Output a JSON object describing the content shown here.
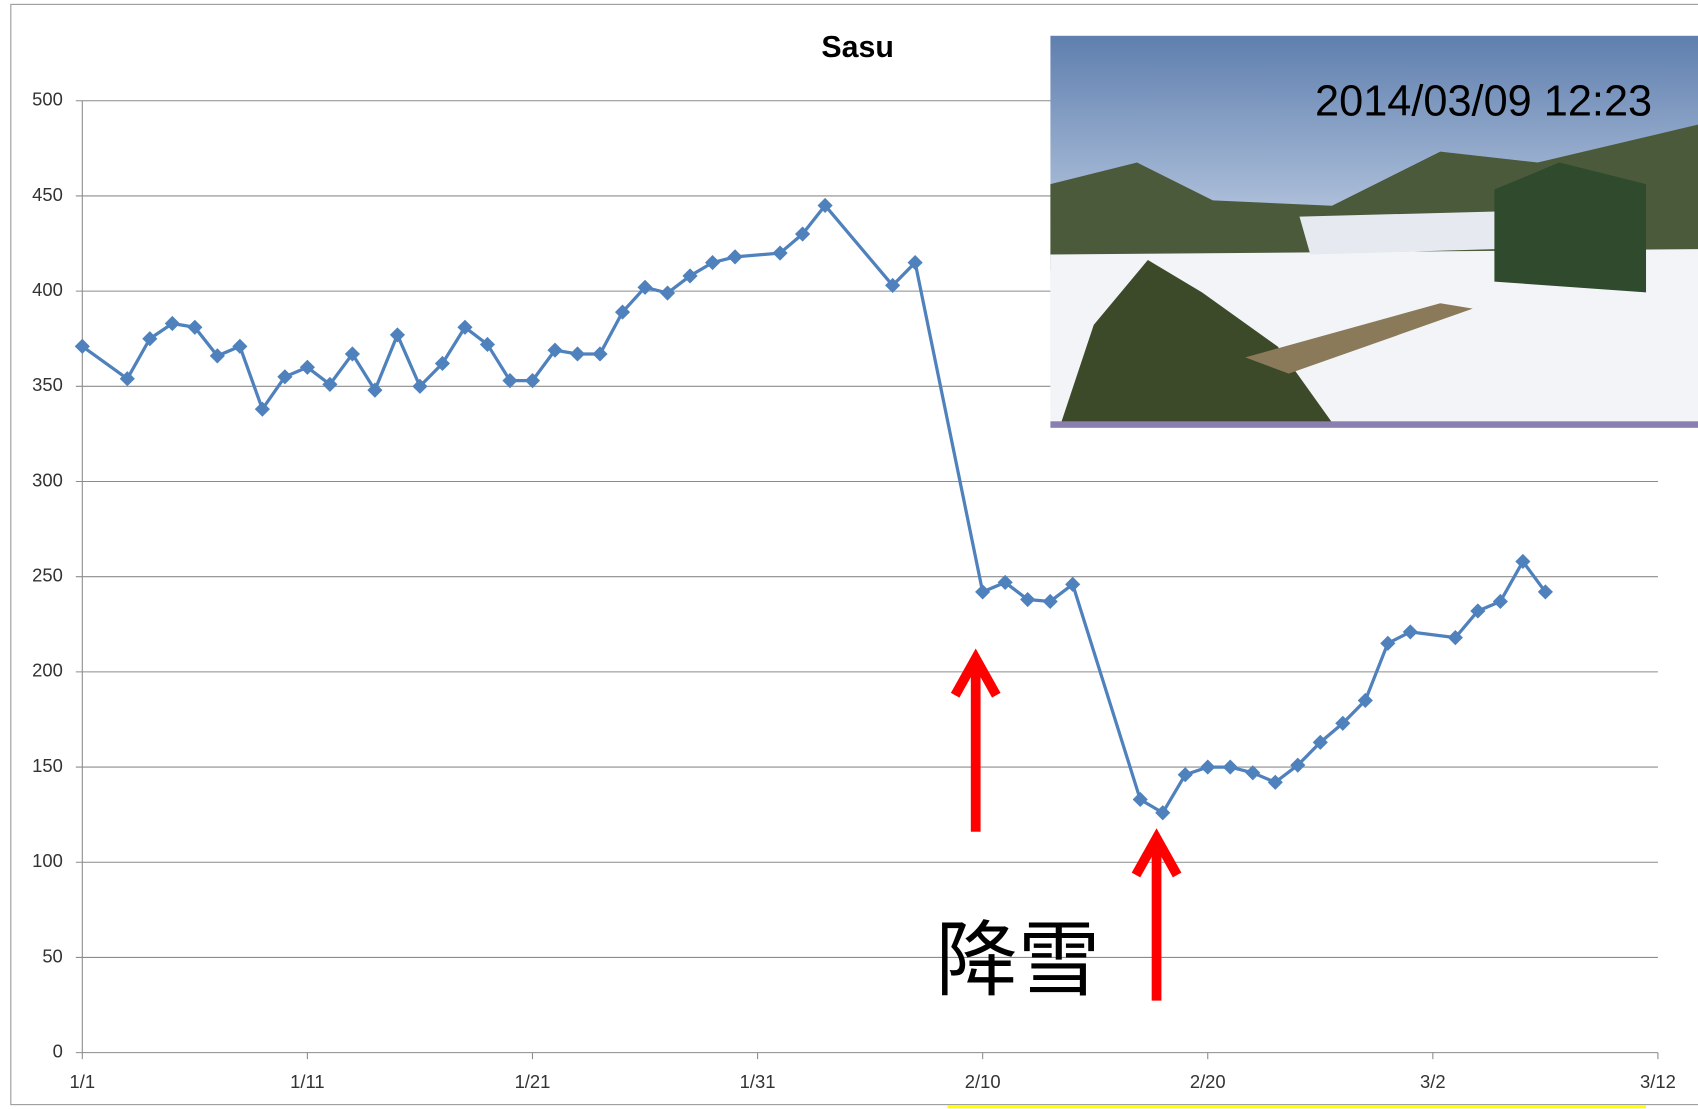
{
  "chart_data": {
    "type": "line",
    "title": "Sasu",
    "x": [
      "1/1",
      "1/3",
      "1/4",
      "1/5",
      "1/6",
      "1/7",
      "1/8",
      "1/9",
      "1/10",
      "1/11",
      "1/12",
      "1/13",
      "1/14",
      "1/15",
      "1/16",
      "1/17",
      "1/18",
      "1/19",
      "1/20",
      "1/21",
      "1/22",
      "1/23",
      "1/24",
      "1/25",
      "1/26",
      "1/27",
      "1/28",
      "1/29",
      "1/30",
      "2/1",
      "2/2",
      "2/3",
      "2/6",
      "2/7",
      "2/10",
      "2/11",
      "2/12",
      "2/13",
      "2/14",
      "2/17",
      "2/18",
      "2/19",
      "2/20",
      "2/21",
      "2/22",
      "2/23",
      "2/24",
      "2/25",
      "2/26",
      "2/27",
      "2/28",
      "3/1",
      "3/3",
      "3/4",
      "3/5",
      "3/6",
      "3/7"
    ],
    "series": [
      {
        "color": "#4f81bd",
        "values": [
          371,
          354,
          375,
          383,
          381,
          366,
          371,
          338,
          355,
          360,
          351,
          367,
          348,
          377,
          350,
          362,
          381,
          372,
          353,
          353,
          369,
          367,
          367,
          389,
          402,
          399,
          408,
          415,
          418,
          420,
          430,
          445,
          403,
          415,
          242,
          247,
          238,
          237,
          246,
          133,
          126,
          146,
          150,
          150,
          147,
          142,
          151,
          163,
          173,
          185,
          215,
          221,
          218,
          232,
          237,
          258,
          242
        ]
      }
    ],
    "xlim": [
      "1/1",
      "3/12"
    ],
    "xticks": [
      "1/1",
      "1/11",
      "1/21",
      "1/31",
      "2/10",
      "2/20",
      "3/2",
      "3/12"
    ],
    "ylim": [
      0,
      500
    ],
    "yticks": [
      0,
      50,
      100,
      150,
      200,
      250,
      300,
      350,
      400,
      450,
      500
    ],
    "grid": true,
    "annotations": [
      "降雪"
    ],
    "photo_timestamp": "2014/03/09 12:23"
  }
}
